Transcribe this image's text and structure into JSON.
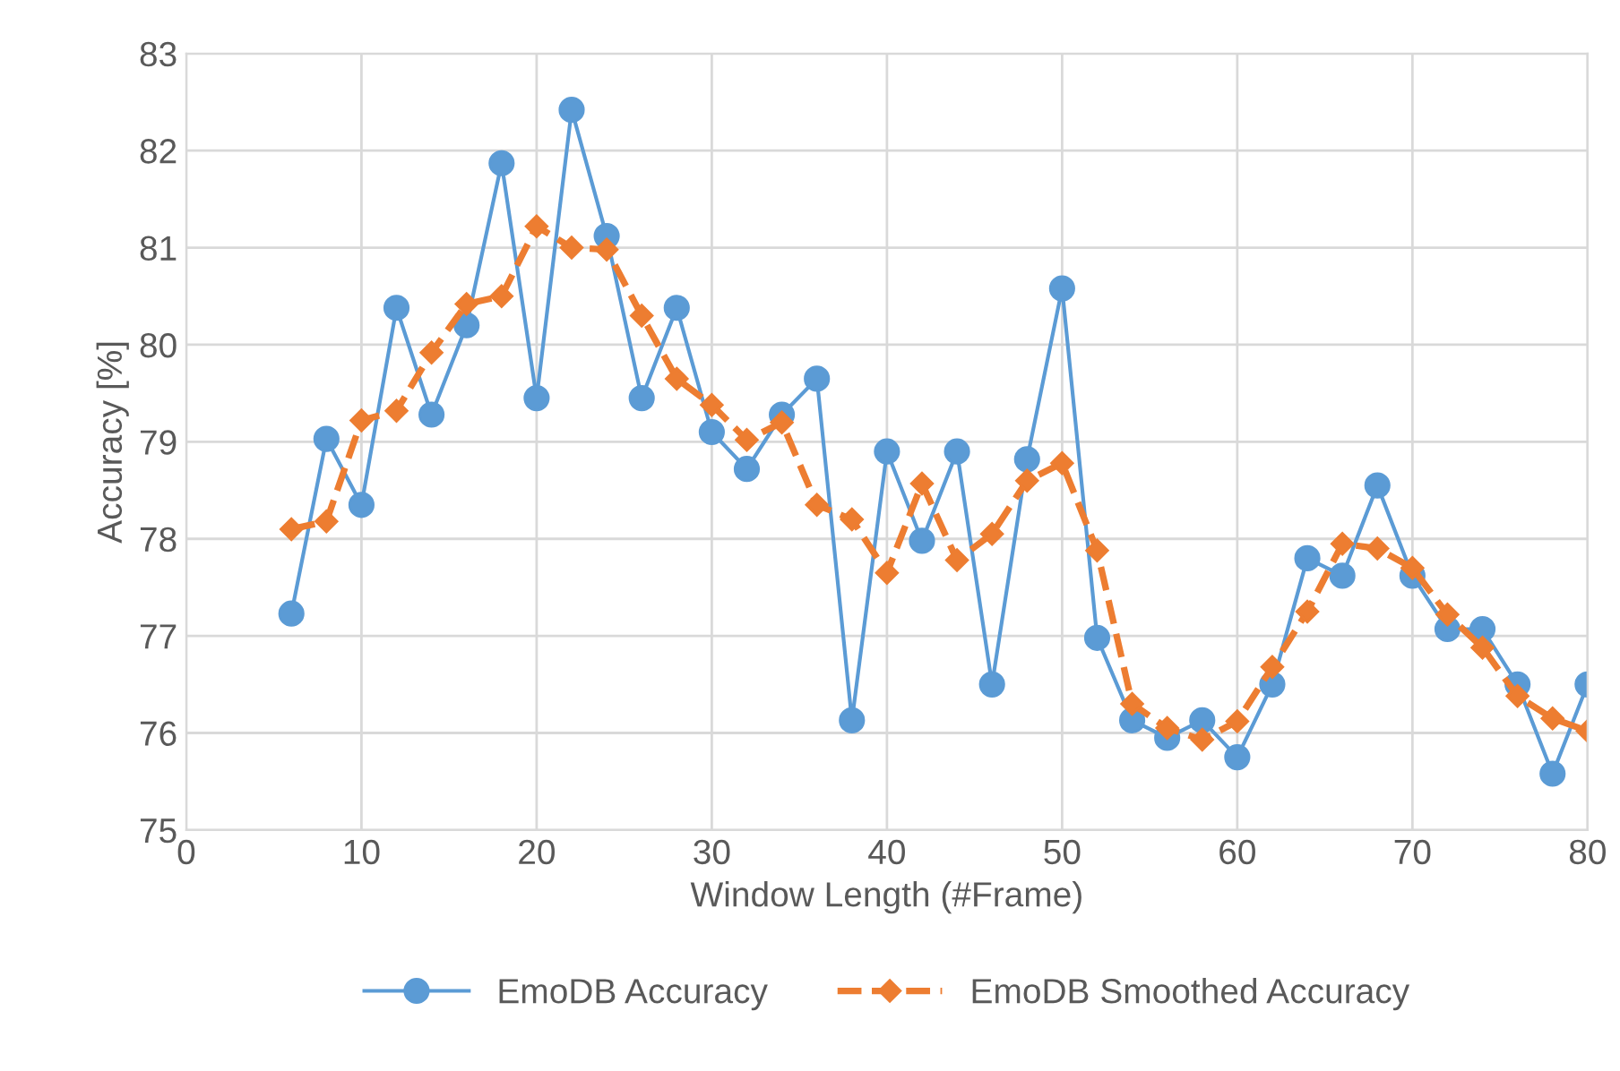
{
  "chart_data": {
    "type": "line",
    "xlabel": "Window Length (#Frame)",
    "ylabel": "Accuracy [%]",
    "x": [
      6,
      8,
      10,
      12,
      14,
      16,
      18,
      20,
      22,
      24,
      26,
      28,
      30,
      32,
      34,
      36,
      38,
      40,
      42,
      44,
      46,
      48,
      50,
      52,
      54,
      56,
      58,
      60,
      62,
      64,
      66,
      68,
      70,
      72,
      74,
      76,
      78,
      80
    ],
    "series": [
      {
        "name": "EmoDB Accuracy",
        "color": "#5b9bd5",
        "marker": "circle",
        "line_style": "solid",
        "values": [
          77.23,
          79.03,
          78.35,
          80.38,
          79.28,
          80.2,
          81.87,
          79.45,
          82.42,
          81.12,
          79.45,
          80.38,
          79.1,
          78.72,
          79.28,
          79.65,
          76.13,
          78.9,
          77.98,
          78.9,
          76.5,
          78.82,
          80.58,
          76.98,
          76.13,
          75.95,
          76.13,
          75.75,
          76.5,
          77.8,
          77.62,
          78.55,
          77.62,
          77.07,
          77.07,
          76.5,
          75.58,
          76.5
        ]
      },
      {
        "name": "EmoDB Smoothed Accuracy",
        "color": "#ed7d31",
        "marker": "diamond",
        "line_style": "dashed",
        "values": [
          78.1,
          78.18,
          79.22,
          79.32,
          79.92,
          80.42,
          80.5,
          81.22,
          81.0,
          80.98,
          80.3,
          79.65,
          79.38,
          79.02,
          79.2,
          78.35,
          78.2,
          77.65,
          78.57,
          77.78,
          78.05,
          78.6,
          78.78,
          77.88,
          76.3,
          76.05,
          75.93,
          76.12,
          76.68,
          77.25,
          77.95,
          77.9,
          77.7,
          77.22,
          76.88,
          76.38,
          76.15,
          76.02
        ]
      }
    ],
    "xlim": [
      0,
      80
    ],
    "xticks": [
      0,
      10,
      20,
      30,
      40,
      50,
      60,
      70,
      80
    ],
    "ylim": [
      75,
      83
    ],
    "yticks": [
      75,
      76,
      77,
      78,
      79,
      80,
      81,
      82,
      83
    ],
    "grid": true,
    "legend": "bottom"
  }
}
